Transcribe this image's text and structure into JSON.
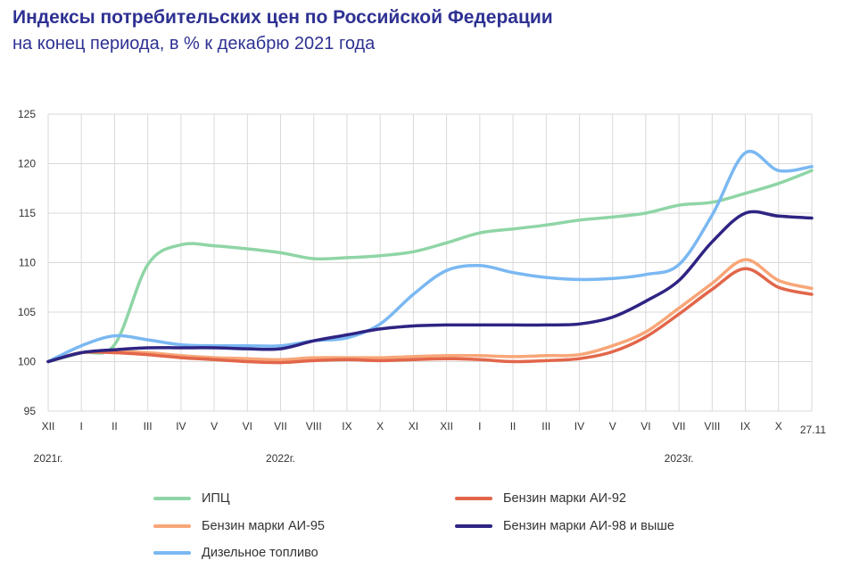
{
  "header": {
    "title": "Индексы потребительских цен по Российской Федерации",
    "subtitle": "на конец периода, в % к декабрю 2021 года"
  },
  "chart_data": {
    "type": "line",
    "title": "Индексы потребительских цен по Российской Федерации",
    "subtitle": "на конец периода, в % к декабрю 2021 года",
    "x": [
      "XII",
      "I",
      "II",
      "III",
      "IV",
      "V",
      "VI",
      "VII",
      "VIII",
      "IX",
      "X",
      "XI",
      "XII",
      "I",
      "II",
      "III",
      "IV",
      "V",
      "VI",
      "VII",
      "VIII",
      "IX",
      "X",
      "27.11"
    ],
    "year_labels": [
      {
        "label": "2021г.",
        "at_index": 0
      },
      {
        "label": "2022г.",
        "at_index": 7
      },
      {
        "label": "2023г.",
        "at_index": 19
      }
    ],
    "ylim": [
      95,
      125
    ],
    "yticks": [
      95,
      100,
      105,
      110,
      115,
      120,
      125
    ],
    "grid": true,
    "legend_position": "bottom",
    "series": [
      {
        "name": "ИПЦ",
        "color": "#8fd5a6",
        "values": [
          100.0,
          100.9,
          101.7,
          109.8,
          111.8,
          111.7,
          111.4,
          111.0,
          110.4,
          110.5,
          110.7,
          111.1,
          112.0,
          113.0,
          113.4,
          113.8,
          114.3,
          114.6,
          115.0,
          115.8,
          116.1,
          117.0,
          118.0,
          119.3
        ]
      },
      {
        "name": "Бензин марки АИ-92",
        "color": "#e2664a",
        "values": [
          100.0,
          100.9,
          100.9,
          100.7,
          100.4,
          100.2,
          100.0,
          99.9,
          100.1,
          100.2,
          100.1,
          100.2,
          100.3,
          100.2,
          100.0,
          100.1,
          100.3,
          101.0,
          102.5,
          104.8,
          107.3,
          109.4,
          107.5,
          106.8
        ]
      },
      {
        "name": "Бензин марки АИ-95",
        "color": "#f8a678",
        "values": [
          100.0,
          100.9,
          101.0,
          100.9,
          100.6,
          100.4,
          100.3,
          100.2,
          100.4,
          100.4,
          100.4,
          100.5,
          100.6,
          100.6,
          100.5,
          100.6,
          100.7,
          101.6,
          103.0,
          105.4,
          107.9,
          110.3,
          108.2,
          107.4
        ]
      },
      {
        "name": "Бензин марки АИ-98 и выше",
        "color": "#2e2483",
        "values": [
          100.0,
          100.9,
          101.2,
          101.4,
          101.4,
          101.4,
          101.3,
          101.3,
          102.1,
          102.7,
          103.3,
          103.6,
          103.7,
          103.7,
          103.7,
          103.7,
          103.8,
          104.5,
          106.1,
          108.2,
          112.1,
          115.0,
          114.7,
          114.5
        ]
      },
      {
        "name": "Дизельное топливо",
        "color": "#7ab8f2",
        "values": [
          100.0,
          101.6,
          102.6,
          102.2,
          101.7,
          101.6,
          101.6,
          101.6,
          102.1,
          102.4,
          103.8,
          106.8,
          109.2,
          109.7,
          109.0,
          108.5,
          108.3,
          108.4,
          108.8,
          109.8,
          114.8,
          121.1,
          119.3,
          119.7
        ]
      }
    ]
  }
}
